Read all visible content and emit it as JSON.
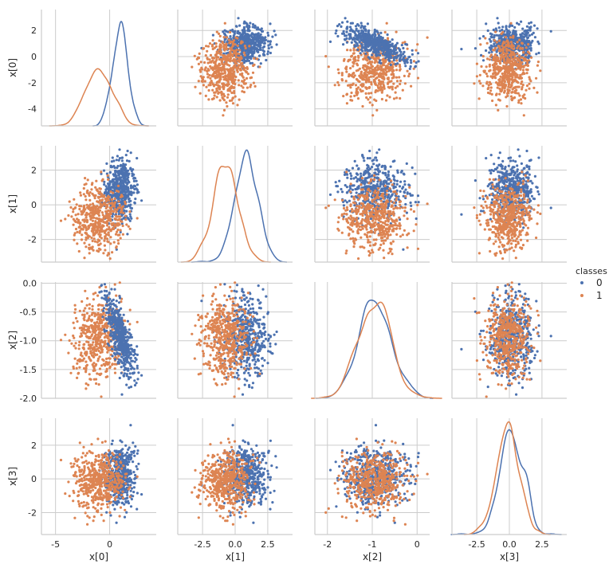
{
  "chart_data": {
    "type": "scatter",
    "kind": "pairplot",
    "variables": [
      "x[0]",
      "x[1]",
      "x[2]",
      "x[3]"
    ],
    "diag_kind": "kde",
    "grid": true,
    "legend": {
      "title": "classes",
      "placement": "right",
      "entries": [
        "0",
        "1"
      ]
    },
    "colors": {
      "0": "#4C72B0",
      "1": "#DD8452"
    },
    "axes": {
      "x[0]": {
        "range": [
          -6.3,
          4.3
        ],
        "ticks": [
          -5,
          0
        ]
      },
      "x[1]": {
        "range": [
          -4.4,
          4.4
        ],
        "ticks": [
          -2.5,
          0.0,
          2.5
        ]
      },
      "x[2]": {
        "range": [
          -2.28,
          0.28
        ],
        "ticks": [
          -2,
          -1,
          0
        ]
      },
      "x[3]": {
        "range": [
          -4.4,
          4.4
        ],
        "ticks": [
          -2.5,
          0.0,
          2.5
        ]
      }
    },
    "y_axes": {
      "x[0]": {
        "range": [
          -5.3,
          3.6
        ],
        "ticks": [
          2,
          0,
          -2,
          -4
        ]
      },
      "x[1]": {
        "range": [
          -3.3,
          3.4
        ],
        "ticks": [
          2,
          0,
          -2
        ]
      },
      "x[2]": {
        "range": [
          -2.0,
          0.02
        ],
        "ticks": [
          "0.0",
          "-0.5",
          "-1.0",
          "-1.5",
          "-2.0"
        ]
      },
      "x[3]": {
        "range": [
          -3.3,
          3.6
        ],
        "ticks": [
          2,
          0,
          -2
        ]
      }
    },
    "series": [
      {
        "name": "0",
        "n_points": 500,
        "mean": [
          1.0,
          0.9,
          -0.95,
          0.1
        ],
        "std": [
          0.7,
          0.9,
          0.35,
          0.9
        ]
      },
      {
        "name": "1",
        "n_points": 500,
        "mean": [
          -0.9,
          -0.7,
          -0.95,
          -0.1
        ],
        "std": [
          1.2,
          0.9,
          0.35,
          0.9
        ]
      }
    ],
    "kde_peaks": {
      "x[0]": {
        "0": {
          "x": 1.0,
          "y": 0.6
        },
        "1": {
          "x": -0.9,
          "y": 0.32
        }
      },
      "x[1]": {
        "0": {
          "x": -0.1,
          "y": 0.45
        },
        "1": {
          "x": -0.1,
          "y": 0.42
        }
      },
      "x[2]": {
        "0": {
          "x": -0.9,
          "y": 1.18
        },
        "1": {
          "x": -1.0,
          "y": 1.12
        }
      },
      "x[3]": {
        "0": {
          "x": 0.1,
          "y": 0.45
        },
        "1": {
          "x": -0.1,
          "y": 0.42
        }
      }
    }
  }
}
